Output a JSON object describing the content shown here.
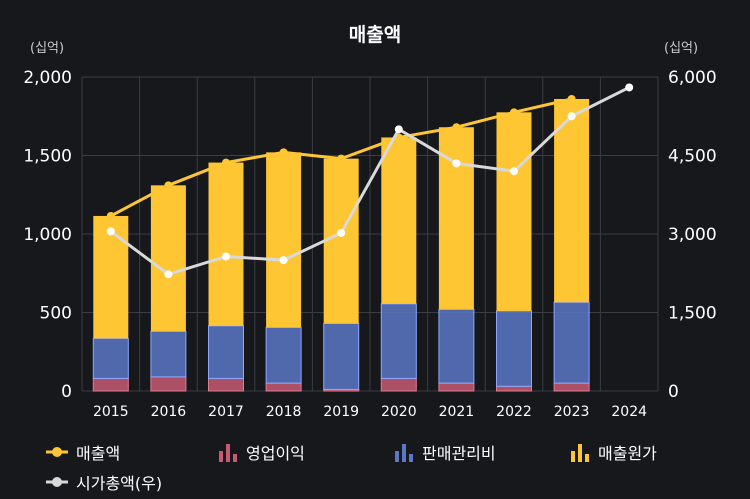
{
  "chart_data": {
    "type": "bar",
    "title": "매출액",
    "left_unit": "(십억)",
    "right_unit": "(십억)",
    "categories": [
      "2015",
      "2016",
      "2017",
      "2018",
      "2019",
      "2020",
      "2021",
      "2022",
      "2023",
      "2024"
    ],
    "ylim_left": [
      0,
      2000
    ],
    "ylim_right": [
      0,
      6000
    ],
    "y_ticks_left": [
      "0",
      "500",
      "1,000",
      "1,500",
      "2,000"
    ],
    "y_ticks_right": [
      "0",
      "1,500",
      "3,000",
      "4,500",
      "6,000"
    ],
    "series": [
      {
        "name": "영업이익",
        "kind": "stacked-bar",
        "axis": "left",
        "color": "#c55a72",
        "values": [
          80,
          90,
          80,
          50,
          10,
          80,
          50,
          30,
          50,
          null
        ]
      },
      {
        "name": "판매관리비",
        "kind": "stacked-bar",
        "axis": "left",
        "color": "#5b77c6",
        "values": [
          255,
          290,
          335,
          355,
          420,
          475,
          470,
          480,
          515,
          null
        ]
      },
      {
        "name": "매출원가",
        "kind": "stacked-bar",
        "axis": "left",
        "color": "#ffc633",
        "values": [
          780,
          930,
          1040,
          1115,
          1050,
          1060,
          1160,
          1265,
          1295,
          null
        ]
      },
      {
        "name": "매출액",
        "kind": "line",
        "axis": "left",
        "color": "#ffc633",
        "values": [
          1115,
          1310,
          1455,
          1520,
          1480,
          1615,
          1680,
          1775,
          1860,
          null
        ]
      },
      {
        "name": "시가총액(우)",
        "kind": "line",
        "axis": "right",
        "color": "#d9d9d9",
        "values": [
          3050,
          2230,
          2570,
          2500,
          3020,
          5000,
          4350,
          4200,
          5250,
          5800
        ]
      }
    ],
    "legend": [
      "매출액",
      "영업이익",
      "판매관리비",
      "매출원가",
      "시가총액(우)"
    ],
    "legend_position": "bottom",
    "grid": true
  }
}
